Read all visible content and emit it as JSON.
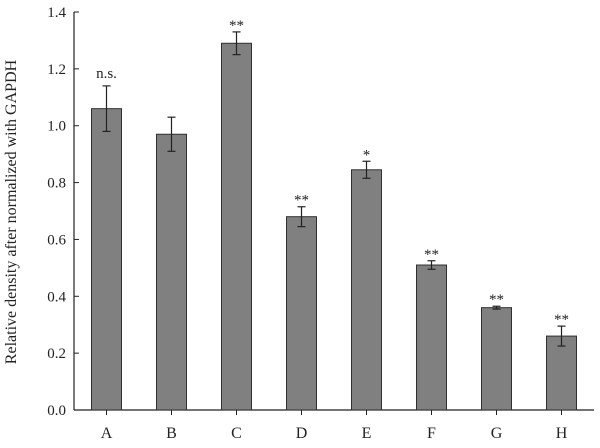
{
  "chart_data": {
    "type": "bar",
    "title": "",
    "xlabel": "",
    "ylabel": "Relative density after normalized with GAPDH",
    "categories": [
      "A",
      "B",
      "C",
      "D",
      "E",
      "F",
      "G",
      "H"
    ],
    "values": [
      1.06,
      0.97,
      1.29,
      0.68,
      0.845,
      0.51,
      0.36,
      0.26
    ],
    "errors": [
      0.08,
      0.06,
      0.04,
      0.035,
      0.03,
      0.015,
      0.005,
      0.035
    ],
    "significance": [
      "n.s.",
      "",
      "**",
      "**",
      "*",
      "**",
      "**",
      "**"
    ],
    "ylim": [
      0,
      1.4
    ],
    "yticks": [
      "0.0",
      "0.2",
      "0.4",
      "0.6",
      "0.8",
      "1.0",
      "1.2",
      "1.4"
    ],
    "grid": false,
    "bar_color": "#808080",
    "bar_edge_color": "#303030"
  }
}
